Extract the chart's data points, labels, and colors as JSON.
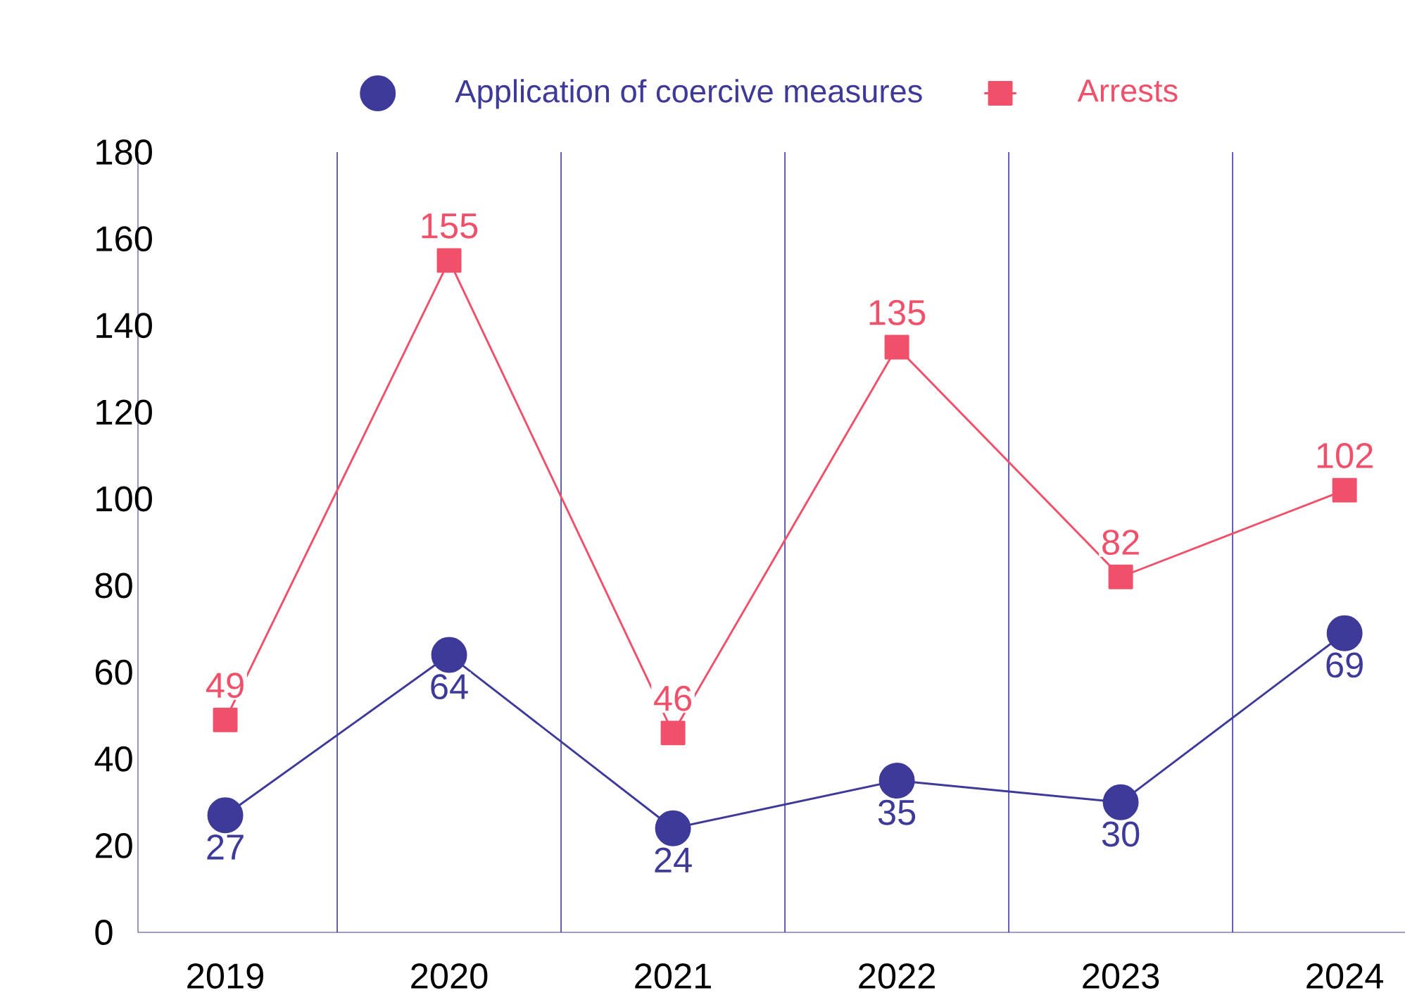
{
  "chart_data": {
    "type": "line",
    "categories": [
      "2019",
      "2020",
      "2021",
      "2022",
      "2023",
      "2024"
    ],
    "series": [
      {
        "name": "Application of coercive measures",
        "color": "#3d3a99",
        "marker": "circle",
        "values": [
          27,
          64,
          24,
          35,
          30,
          69
        ]
      },
      {
        "name": "Arrests",
        "color": "#f0506a",
        "marker": "square",
        "values": [
          49,
          155,
          46,
          135,
          82,
          102
        ]
      }
    ],
    "ylim": [
      0,
      180
    ],
    "yticks": [
      0,
      20,
      40,
      60,
      80,
      100,
      120,
      140,
      160,
      180
    ],
    "grid": "x",
    "legend": "top",
    "data_labels": true,
    "line_style": "solid"
  }
}
